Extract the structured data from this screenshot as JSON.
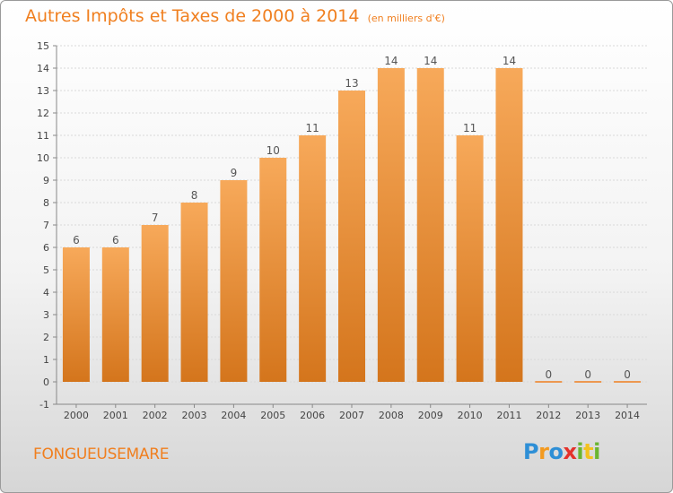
{
  "header": {
    "title": "Autres Impôts et Taxes de 2000 à 2014",
    "unit": "(en milliers d'€)"
  },
  "footer": {
    "location": "FONGUEUSEMARE",
    "logo": {
      "p": "P",
      "r": "r",
      "o": "o",
      "x": "x",
      "i": "i",
      "t": "t",
      "i2": "i"
    }
  },
  "colors": {
    "accent": "#f07f1f",
    "bar_top": "#f7a95a",
    "bar_bottom": "#d4751c",
    "grid": "#d9d9d9"
  },
  "chart_data": {
    "type": "bar",
    "title": "Autres Impôts et Taxes de 2000 à 2014",
    "subtitle": "(en milliers d'€)",
    "categories": [
      "2000",
      "2001",
      "2002",
      "2003",
      "2004",
      "2005",
      "2006",
      "2007",
      "2008",
      "2009",
      "2010",
      "2011",
      "2012",
      "2013",
      "2014"
    ],
    "values": [
      6,
      6,
      7,
      8,
      9,
      10,
      11,
      13,
      14,
      14,
      11,
      14,
      0,
      0,
      0
    ],
    "ylim": [
      -1,
      15
    ],
    "yticks": [
      -1,
      0,
      1,
      2,
      3,
      4,
      5,
      6,
      7,
      8,
      9,
      10,
      11,
      12,
      13,
      14,
      15
    ],
    "grid": true,
    "xlabel": "",
    "ylabel": ""
  }
}
